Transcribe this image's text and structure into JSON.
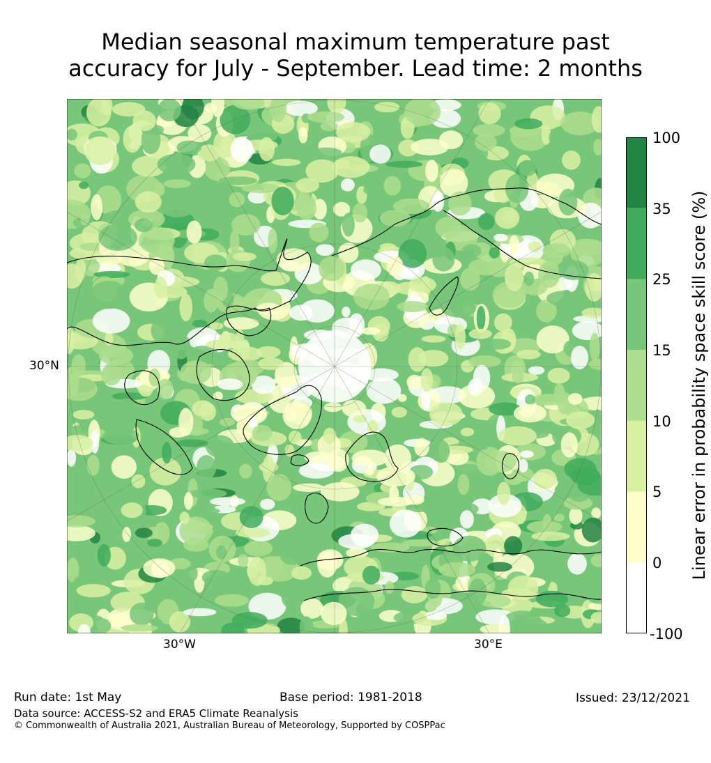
{
  "title": {
    "line1": "Median seasonal maximum temperature past",
    "line2": "accuracy for July - September. Lead time: 2 months"
  },
  "map": {
    "projection": "north polar stereographic",
    "axis_labels": {
      "lat_left": "30°N",
      "lon_bottom_left": "30°W",
      "lon_bottom_right": "30°E"
    },
    "coastline_color": "#000000"
  },
  "colorbar": {
    "label": "Linear error in probability space skill score (%)",
    "ticks": [
      "-100",
      "0",
      "5",
      "10",
      "15",
      "25",
      "35",
      "100"
    ],
    "bins": [
      {
        "from": -100,
        "to": 0,
        "color": "#ffffff"
      },
      {
        "from": 0,
        "to": 5,
        "color": "#ffffcc"
      },
      {
        "from": 5,
        "to": 10,
        "color": "#d9f0a3"
      },
      {
        "from": 10,
        "to": 15,
        "color": "#addd8e"
      },
      {
        "from": 15,
        "to": 25,
        "color": "#78c679"
      },
      {
        "from": 25,
        "to": 35,
        "color": "#41ab5d"
      },
      {
        "from": 35,
        "to": 100,
        "color": "#238443"
      }
    ]
  },
  "footer": {
    "run_date": "Run date: 1st May",
    "base_period": "Base period: 1981-2018",
    "issued": "Issued: 23/12/2021",
    "data_source": "Data source: ACCESS-S2 and ERA5 Climate Reanalysis",
    "copyright": "© Commonwealth of Australia 2021, Australian Bureau of Meteorology, Supported by COSPPac"
  }
}
